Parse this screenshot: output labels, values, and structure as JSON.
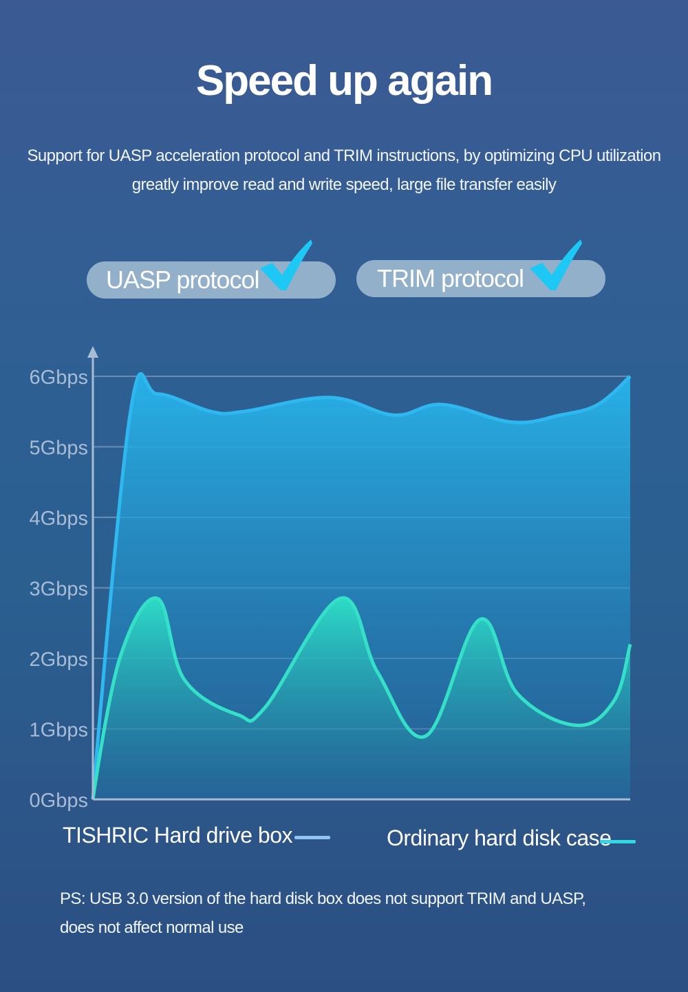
{
  "title": "Speed up again",
  "subtitle_line1": "Support for UASP acceleration protocol and TRIM instructions, by optimizing CPU  utilization",
  "subtitle_line2": "greatly improve read and write speed, large file transfer easily",
  "badges": [
    {
      "label": "UASP protocol",
      "icon": "check-icon"
    },
    {
      "label": "TRIM protocol",
      "icon": "check-icon"
    }
  ],
  "colors": {
    "fast_series": "#2fb8f0",
    "ordinary_series": "#35e0c8",
    "check": "#1ec8f5",
    "legend_fast": "#8fc4f5",
    "legend_ordinary": "#2fd9e4"
  },
  "chart_data": {
    "type": "area",
    "ylim": [
      0,
      6
    ],
    "yticks": [
      "0Gbps",
      "1Gbps",
      "2Gbps",
      "3Gbps",
      "4Gbps",
      "5Gbps",
      "6Gbps"
    ],
    "xlim": [
      0,
      100
    ],
    "grid": true,
    "series": [
      {
        "name": "TISHRIC Hard drive box",
        "points": [
          [
            0,
            0
          ],
          [
            7,
            5.5
          ],
          [
            12,
            5.75
          ],
          [
            22,
            5.5
          ],
          [
            28,
            5.5
          ],
          [
            44,
            5.7
          ],
          [
            56,
            5.45
          ],
          [
            65,
            5.6
          ],
          [
            78,
            5.35
          ],
          [
            87,
            5.45
          ],
          [
            94,
            5.6
          ],
          [
            100,
            6.0
          ]
        ]
      },
      {
        "name": "Ordinary hard disk case",
        "points": [
          [
            0,
            0
          ],
          [
            5,
            2.0
          ],
          [
            12,
            2.85
          ],
          [
            17,
            1.7
          ],
          [
            27,
            1.2
          ],
          [
            32,
            1.3
          ],
          [
            46,
            2.85
          ],
          [
            53,
            1.8
          ],
          [
            62,
            0.9
          ],
          [
            72,
            2.55
          ],
          [
            79,
            1.5
          ],
          [
            90,
            1.05
          ],
          [
            97,
            1.4
          ],
          [
            100,
            2.2
          ]
        ]
      }
    ]
  },
  "legend": {
    "fast_label": "TISHRIC Hard drive box",
    "ordinary_label": "Ordinary hard disk case"
  },
  "note_line1": "PS: USB 3.0 version of the hard disk box does not support TRIM and UASP,",
  "note_line2": "does not affect normal use"
}
